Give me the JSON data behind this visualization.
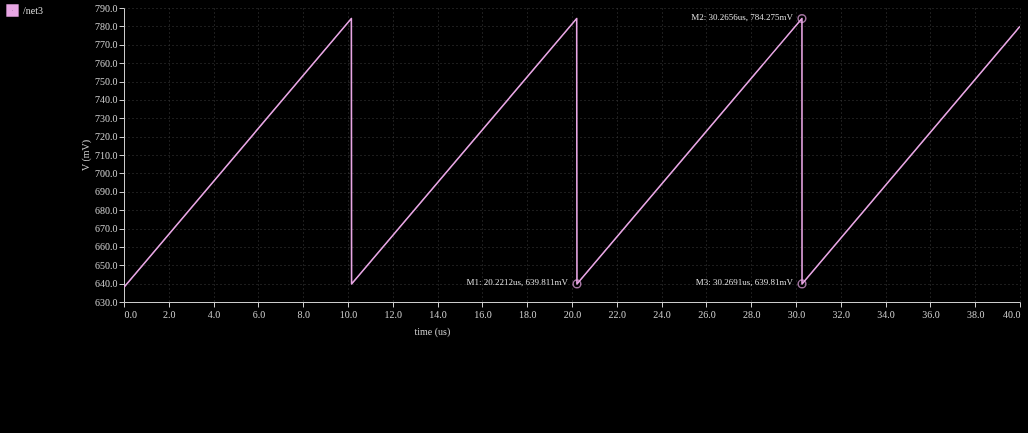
{
  "chart_data": {
    "type": "line",
    "xlabel": "time (us)",
    "ylabel": "V (mV)",
    "x": [
      0,
      10.15,
      10.16,
      20.21,
      20.2212,
      30.2656,
      30.2691,
      40
    ],
    "series": [
      {
        "name": "/net3",
        "color": "#e8a6e4",
        "values": [
          638,
          784.3,
          639.8,
          784.3,
          639.8,
          784.3,
          639.8,
          780
        ]
      }
    ],
    "xlim": [
      0,
      40
    ],
    "xticks": [
      {
        "value": 0,
        "label": "0.0"
      },
      {
        "value": 2,
        "label": "2.0"
      },
      {
        "value": 4,
        "label": "4.0"
      },
      {
        "value": 6,
        "label": "6.0"
      },
      {
        "value": 8,
        "label": "8.0"
      },
      {
        "value": 10,
        "label": "10.0"
      },
      {
        "value": 12,
        "label": "12.0"
      },
      {
        "value": 14,
        "label": "14.0"
      },
      {
        "value": 16,
        "label": "16.0"
      },
      {
        "value": 18,
        "label": "18.0"
      },
      {
        "value": 20,
        "label": "20.0"
      },
      {
        "value": 22,
        "label": "22.0"
      },
      {
        "value": 24,
        "label": "24.0"
      },
      {
        "value": 26,
        "label": "26.0"
      },
      {
        "value": 28,
        "label": "28.0"
      },
      {
        "value": 30,
        "label": "30.0"
      },
      {
        "value": 32,
        "label": "32.0"
      },
      {
        "value": 34,
        "label": "34.0"
      },
      {
        "value": 36,
        "label": "36.0"
      },
      {
        "value": 38,
        "label": "38.0"
      },
      {
        "value": 40,
        "label": "40.0"
      }
    ],
    "ylim": [
      630,
      790
    ],
    "yticks": [
      {
        "value": 630,
        "label": "630.0"
      },
      {
        "value": 640,
        "label": "640.0"
      },
      {
        "value": 650,
        "label": "650.0"
      },
      {
        "value": 660,
        "label": "660.0"
      },
      {
        "value": 670,
        "label": "670.0"
      },
      {
        "value": 680,
        "label": "680.0"
      },
      {
        "value": 690,
        "label": "690.0"
      },
      {
        "value": 700,
        "label": "700.0"
      },
      {
        "value": 710,
        "label": "710.0"
      },
      {
        "value": 720,
        "label": "720.0"
      },
      {
        "value": 730,
        "label": "730.0"
      },
      {
        "value": 740,
        "label": "740.0"
      },
      {
        "value": 750,
        "label": "750.0"
      },
      {
        "value": 760,
        "label": "760.0"
      },
      {
        "value": 770,
        "label": "770.0"
      },
      {
        "value": 780,
        "label": "780.0"
      },
      {
        "value": 790,
        "label": "790.0"
      }
    ],
    "annotations": [
      {
        "text": "M1: 20.2212us, 639.811mV",
        "x": 20.2212,
        "y": 639.811
      },
      {
        "text": "M2: 30.2656us, 784.275mV",
        "x": 30.2656,
        "y": 784.275
      },
      {
        "text": "M3: 30.2691us, 639.81mV",
        "x": 30.2691,
        "y": 639.81
      }
    ],
    "grid": true,
    "legend": "top left",
    "marker": "none",
    "line_style": "solid"
  }
}
